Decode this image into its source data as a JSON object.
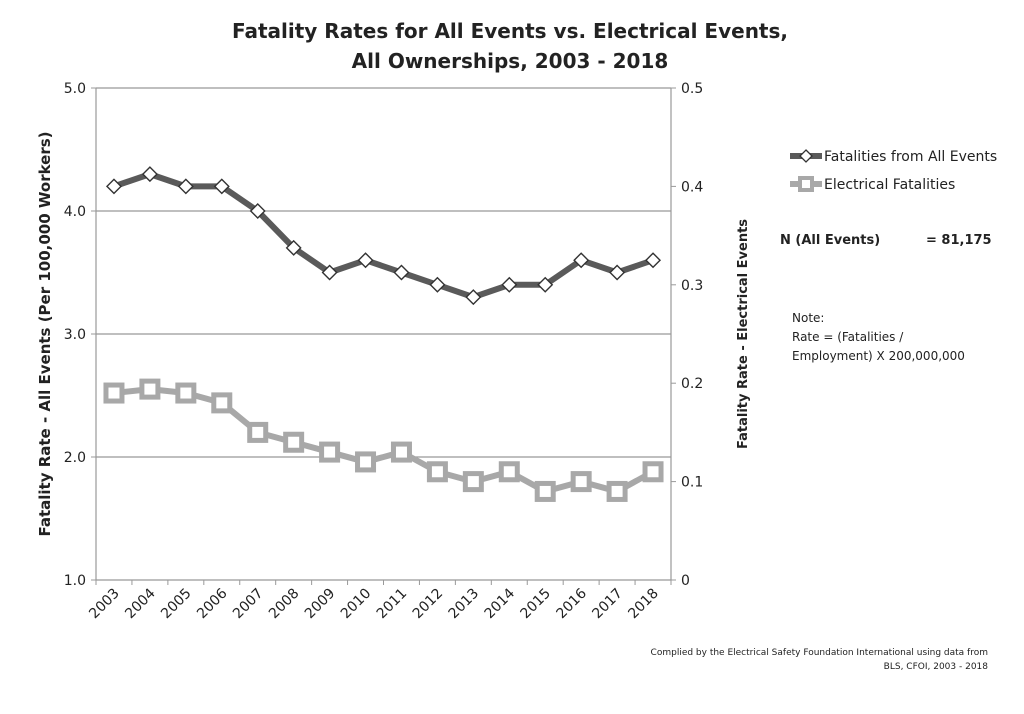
{
  "chart_data": {
    "type": "line",
    "title": [
      "Fatality Rates for All Events vs. Electrical Events,",
      "All Ownerships, 2003 - 2018"
    ],
    "ylabel": "Fatality Rate - All Events (Per 100,000 Workers)",
    "y2label": "Fatality Rate - Electrical Events",
    "ylim": [
      1.0,
      5.0
    ],
    "y2lim": [
      0,
      0.5
    ],
    "yticks": [
      "1.0",
      "2.0",
      "3.0",
      "4.0",
      "5.0"
    ],
    "y2ticks": [
      "0",
      "0.1",
      "0.2",
      "0.3",
      "0.4",
      "0.5"
    ],
    "grid": true,
    "legend_position": "right",
    "categories": [
      "2003",
      "2004",
      "2005",
      "2006",
      "2007",
      "2008",
      "2009",
      "2010",
      "2011",
      "2012",
      "2013",
      "2014",
      "2015",
      "2016",
      "2017",
      "2018"
    ],
    "series": [
      {
        "name": "Fatalities from All Events",
        "axis": "left",
        "color": "#5a5a5a",
        "marker": "diamond",
        "values": [
          4.2,
          4.3,
          4.2,
          4.2,
          4.0,
          3.7,
          3.5,
          3.6,
          3.5,
          3.4,
          3.3,
          3.4,
          3.4,
          3.6,
          3.5,
          3.6
        ]
      },
      {
        "name": "Electrical Fatalities",
        "axis": "right",
        "color": "#a8a8a8",
        "marker": "square",
        "values": [
          0.19,
          0.194,
          0.19,
          0.18,
          0.15,
          0.14,
          0.13,
          0.12,
          0.13,
          0.11,
          0.1,
          0.11,
          0.09,
          0.1,
          0.09,
          0.11
        ]
      }
    ]
  },
  "annotations": {
    "n_label": "N (All Events)",
    "n_value": "= 81,175",
    "note_lines": [
      "Note:",
      "Rate = (Fatalities /",
      "Employment) X 200,000,000"
    ],
    "source_lines": [
      "Complied by the Electrical Safety Foundation International using data from",
      "BLS, CFOI, 2003 - 2018"
    ]
  }
}
